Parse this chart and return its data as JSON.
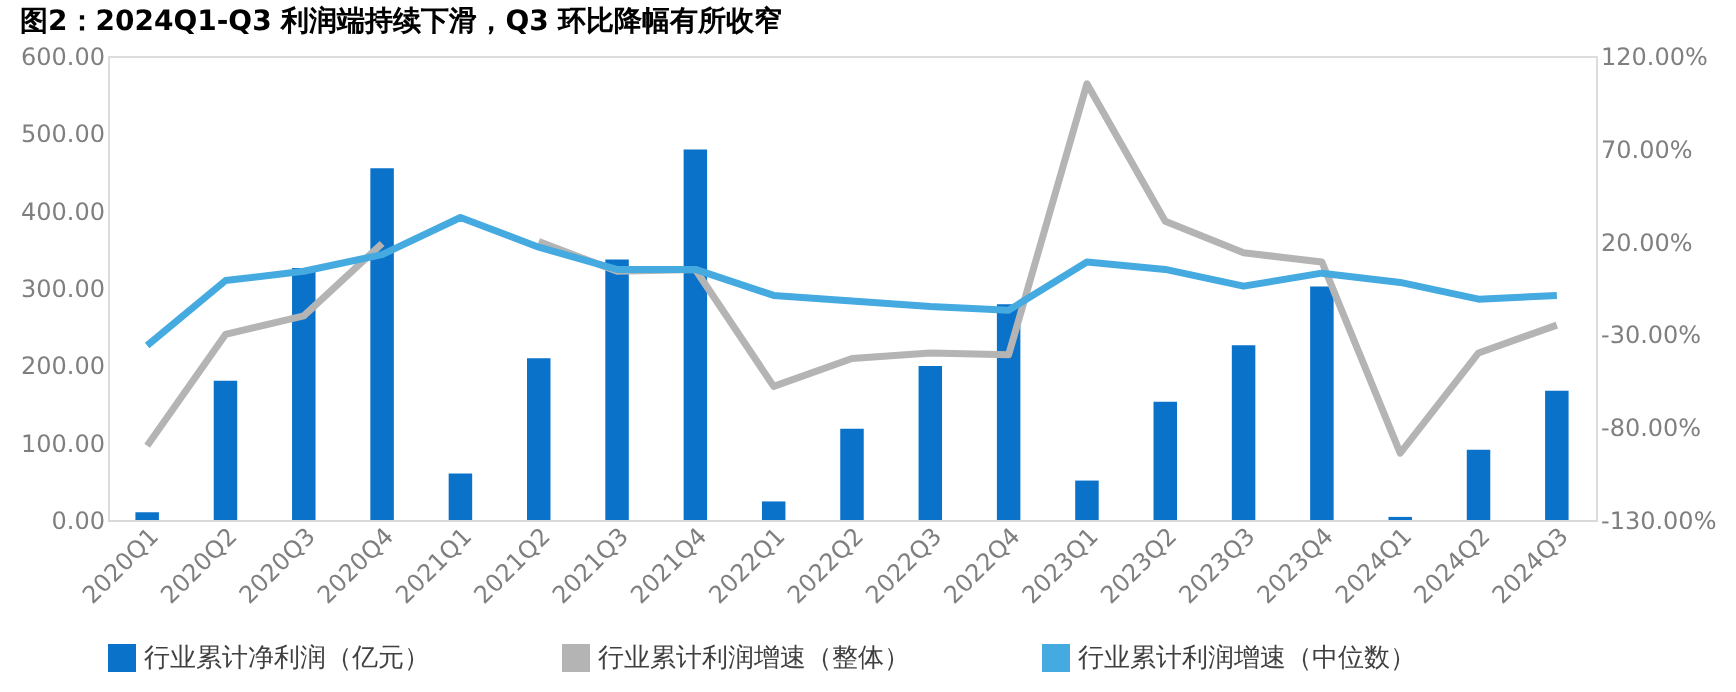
{
  "chart_data": {
    "type": "bar",
    "title": "图2：2024Q1-Q3 利润端持续下滑，Q3 环比降幅有所收窄",
    "categories": [
      "2020Q1",
      "2020Q2",
      "2020Q3",
      "2020Q4",
      "2021Q1",
      "2021Q2",
      "2021Q3",
      "2021Q4",
      "2022Q1",
      "2022Q2",
      "2022Q3",
      "2022Q4",
      "2023Q1",
      "2023Q2",
      "2023Q3",
      "2023Q4",
      "2024Q1",
      "2024Q2",
      "2024Q3"
    ],
    "series": [
      {
        "name": "行业累计净利润（亿元）",
        "color": "#0a72c8",
        "values": [
          10,
          180,
          326,
          455,
          60,
          209,
          337,
          479,
          24,
          118,
          199,
          279,
          51,
          153,
          226,
          302,
          4,
          91,
          167
        ]
      },
      {
        "name": "行业累计利润增速（整体）",
        "type": "line",
        "axis": "y2",
        "color": "#b4b4b4",
        "values": [
          -90,
          -30,
          -20,
          19,
          null,
          20,
          4,
          5,
          -58,
          -43,
          -40,
          -41,
          105,
          31,
          14,
          9,
          -94,
          -40,
          -25
        ]
      },
      {
        "name": "行业累计利润增速（中位数）",
        "type": "line",
        "axis": "y2",
        "color": "#44aae0",
        "values": [
          -36,
          -1,
          4,
          13,
          33,
          17,
          5,
          5,
          -9,
          -12,
          -15,
          -17,
          9,
          5,
          -4,
          3,
          -2,
          -11,
          -9
        ]
      }
    ],
    "ylim": [
      0,
      600
    ],
    "yticks": [
      {
        "value": 0,
        "label": "0.00"
      },
      {
        "value": 100,
        "label": "100.00"
      },
      {
        "value": 200,
        "label": "200.00"
      },
      {
        "value": 300,
        "label": "300.00"
      },
      {
        "value": 400,
        "label": "400.00"
      },
      {
        "value": 500,
        "label": "500.00"
      },
      {
        "value": 600,
        "label": "600.00"
      }
    ],
    "y2lim": [
      -130,
      120
    ],
    "y2ticks": [
      {
        "value": -130,
        "label": "-130.00%"
      },
      {
        "value": -80,
        "label": "-80.00%"
      },
      {
        "value": -30,
        "label": "-30.00%"
      },
      {
        "value": 20,
        "label": "20.00%"
      },
      {
        "value": 70,
        "label": "70.00%"
      },
      {
        "value": 120,
        "label": "120.00%"
      }
    ],
    "grid": false,
    "legend": "bottom"
  }
}
